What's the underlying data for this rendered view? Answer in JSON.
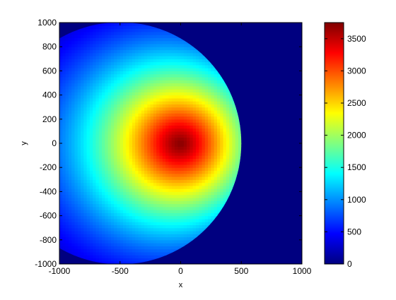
{
  "chart_data": {
    "type": "heatmap",
    "title": "",
    "xlabel": "x",
    "ylabel": "y",
    "xlim": [
      -1000,
      1000
    ],
    "ylim": [
      -1000,
      1000
    ],
    "x_ticks": [
      -1000,
      -500,
      0,
      500,
      1000
    ],
    "y_ticks": [
      1000,
      800,
      600,
      400,
      200,
      0,
      -200,
      -400,
      -600,
      -800,
      -1000
    ],
    "colorbar": {
      "colormap": "jet",
      "clim": [
        0,
        3750
      ],
      "ticks": [
        0,
        500,
        1000,
        1500,
        2000,
        2500,
        3000,
        3500
      ]
    },
    "background_value": 0,
    "disk": {
      "center": [
        -500,
        0
      ],
      "radius": 1000
    },
    "peak": {
      "x": 0,
      "y": 0,
      "value": 3750
    },
    "grid": false,
    "colors": {
      "low": "#00008f",
      "high": "#800000"
    }
  }
}
